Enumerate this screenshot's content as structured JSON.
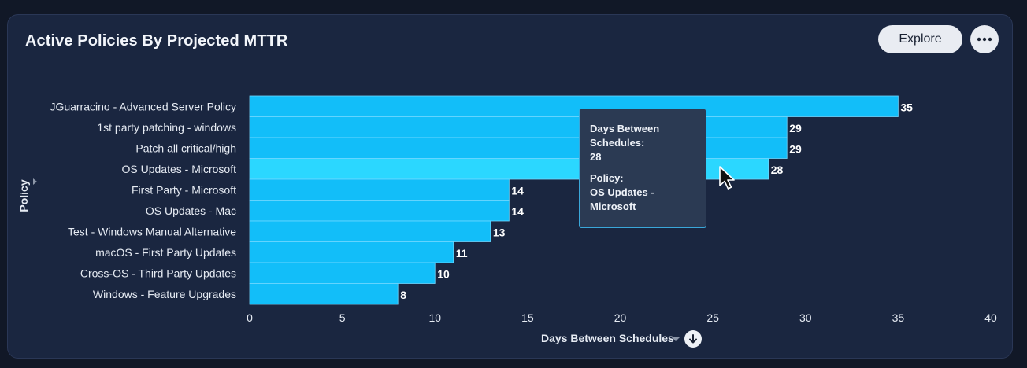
{
  "header": {
    "title": "Active Policies By Projected MTTR",
    "explore_label": "Explore",
    "more_icon": "more-horizontal-icon"
  },
  "colors": {
    "bar": "#12bef9",
    "bar_highlight": "#2bd7ff",
    "bar_border": "#6fd7ff",
    "background": "#1a2640"
  },
  "chart_data": {
    "type": "bar",
    "orientation": "horizontal",
    "categories": [
      "JGuarracino - Advanced Server Policy",
      "1st party patching - windows",
      "Patch all critical/high",
      "OS Updates - Microsoft",
      "First Party - Microsoft",
      "OS Updates - Mac",
      "Test - Windows Manual Alternative",
      "macOS - First Party Updates",
      "Cross-OS - Third Party Updates",
      "Windows - Feature Upgrades"
    ],
    "values": [
      35,
      29,
      29,
      28,
      14,
      14,
      13,
      11,
      10,
      8
    ],
    "xlabel": "Days Between Schedules",
    "ylabel": "Policy",
    "xlim": [
      0,
      40
    ],
    "xticks": [
      0,
      5,
      10,
      15,
      20,
      25,
      30,
      35,
      40
    ],
    "data_labels": true,
    "grid": false,
    "highlighted_category": "OS Updates - Microsoft"
  },
  "tooltip": {
    "label1": "Days Between Schedules:",
    "value1": "28",
    "label2": "Policy:",
    "value2": "OS Updates - Microsoft"
  }
}
